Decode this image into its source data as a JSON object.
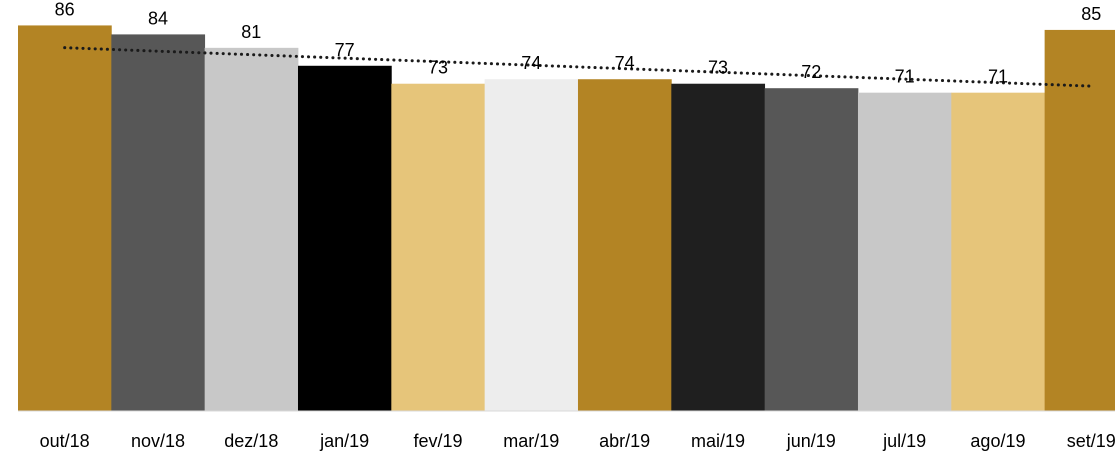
{
  "chart_data": {
    "type": "bar",
    "title": "",
    "xlabel": "",
    "ylabel": "",
    "ylim": [
      0,
      90
    ],
    "grid": false,
    "legend": "none",
    "categories": [
      "out/18",
      "nov/18",
      "dez/18",
      "jan/19",
      "fev/19",
      "mar/19",
      "abr/19",
      "mai/19",
      "jun/19",
      "jul/19",
      "ago/19",
      "set/19"
    ],
    "values": [
      86,
      84,
      81,
      77,
      73,
      74,
      74,
      73,
      72,
      71,
      71,
      85
    ],
    "data_labels": [
      "86",
      "84",
      "81",
      "77",
      "73",
      "74",
      "74",
      "73",
      "72",
      "71",
      "71",
      "85"
    ],
    "bar_colors": [
      "#B38424",
      "#575757",
      "#C8C8C8",
      "#000000",
      "#E6C57A",
      "#EDEDED",
      "#B38424",
      "#1F1F1F",
      "#575757",
      "#C8C8C8",
      "#E6C57A",
      "#B38424"
    ],
    "trendline": {
      "type": "linear",
      "style": "dotted",
      "color": "#1A1A1A"
    }
  }
}
